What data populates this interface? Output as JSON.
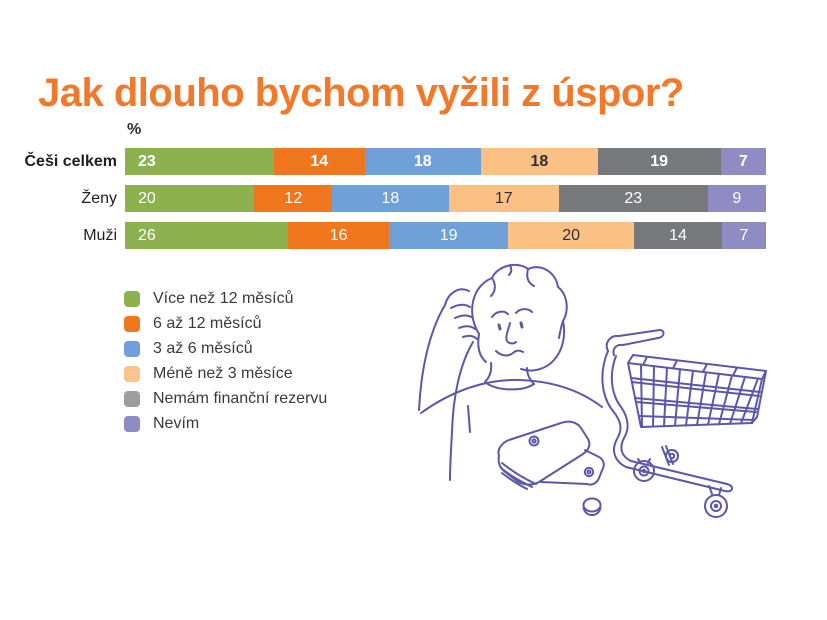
{
  "title": "Jak dlouho bychom vyžili z úspor?",
  "unit_label": "%",
  "chart_data": {
    "type": "bar",
    "variant": "horizontal-stacked-percent",
    "unit": "%",
    "value_labels": "inside",
    "legend_position": "bottom-left",
    "categories": [
      "Češi celkem",
      "Ženy",
      "Muži"
    ],
    "emphasized_category_index": 0,
    "series": [
      {
        "name": "Více než 12 měsíců",
        "color": "#8DB14F",
        "value_text_color": "#FFFFFF",
        "values": [
          23,
          20,
          26
        ]
      },
      {
        "name": "6 až 12 měsíců",
        "color": "#F1771F",
        "value_text_color": "#FFFFFF",
        "values": [
          14,
          12,
          16
        ]
      },
      {
        "name": "3 až 6 měsíců",
        "color": "#6FA0D8",
        "value_text_color": "#FFFFFF",
        "values": [
          18,
          18,
          19
        ]
      },
      {
        "name": "Méně než 3 měsíce",
        "color": "#FAC084",
        "legend_color": "#FAC48D",
        "value_text_color": "#2F2F31",
        "values": [
          18,
          17,
          20
        ]
      },
      {
        "name": "Nemám finanční rezervu",
        "color": "#77787B",
        "legend_color": "#9C9EA1",
        "value_text_color": "#FFFFFF",
        "values": [
          19,
          23,
          14
        ]
      },
      {
        "name": "Nevím",
        "color": "#8F8CC4",
        "value_text_color": "#FFFFFF",
        "values": [
          7,
          9,
          7
        ]
      }
    ]
  },
  "colors": {
    "title": "#F0792C",
    "text": "#2D2D2F",
    "illustration_stroke": "#5B58A9",
    "background": "#FFFFFF"
  },
  "illustration": {
    "parts": [
      "thinking-person",
      "wallet",
      "coin",
      "shopping-cart"
    ]
  }
}
